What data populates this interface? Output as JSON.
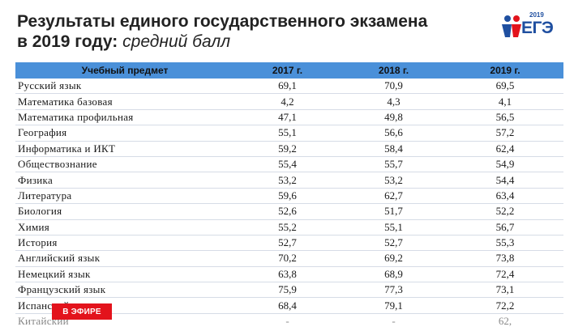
{
  "title_main": "Результаты единого государственного экзамена",
  "title_line2": "в 2019 году:",
  "title_sub": "средний балл",
  "logo": {
    "year": "2019",
    "word": "ЕГЭ"
  },
  "table": {
    "headers": [
      "Учебный предмет",
      "2017 г.",
      "2018 г.",
      "2019 г."
    ],
    "rows": [
      [
        "Русский язык",
        "69,1",
        "70,9",
        "69,5"
      ],
      [
        "Математика базовая",
        "4,2",
        "4,3",
        "4,1"
      ],
      [
        "Математика профильная",
        "47,1",
        "49,8",
        "56,5"
      ],
      [
        "География",
        "55,1",
        "56,6",
        "57,2"
      ],
      [
        "Информатика и ИКТ",
        "59,2",
        "58,4",
        "62,4"
      ],
      [
        "Обществознание",
        "55,4",
        "55,7",
        "54,9"
      ],
      [
        "Физика",
        "53,2",
        "53,2",
        "54,4"
      ],
      [
        "Литература",
        "59,6",
        "62,7",
        "63,4"
      ],
      [
        "Биология",
        "52,6",
        "51,7",
        "52,2"
      ],
      [
        "Химия",
        "55,2",
        "55,1",
        "56,7"
      ],
      [
        "История",
        "52,7",
        "52,7",
        "55,3"
      ],
      [
        "Английский язык",
        "70,2",
        "69,2",
        "73,8"
      ],
      [
        "Немецкий язык",
        "63,8",
        "68,9",
        "72,4"
      ],
      [
        "Французский язык",
        "75,9",
        "77,3",
        "73,1"
      ],
      [
        "Испанский язык",
        "68,4",
        "79,1",
        "72,2"
      ],
      [
        "Китайский",
        "-",
        "-",
        "62,"
      ]
    ]
  },
  "live_badge": "В ЭФИРЕ",
  "colors": {
    "header_bg": "#4a90d9",
    "live_red": "#e3131c",
    "logo_blue": "#1f4fa0",
    "logo_red": "#e3131c"
  }
}
